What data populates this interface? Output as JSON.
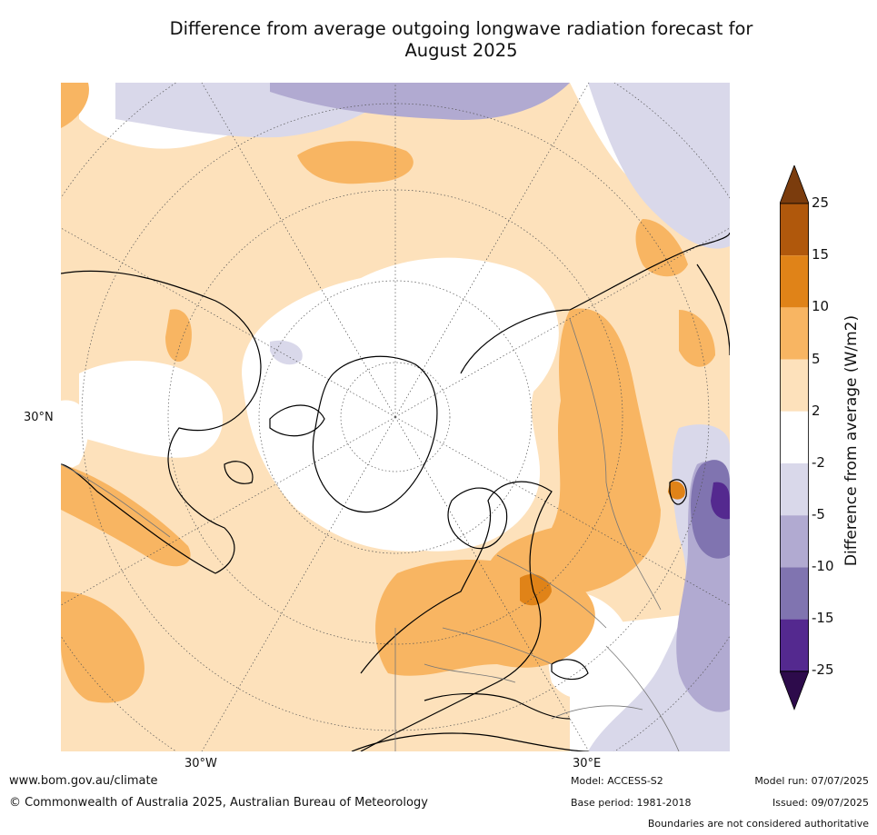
{
  "title": {
    "line1": "Difference from average outgoing longwave radiation forecast for",
    "line2": "August 2025"
  },
  "map": {
    "projection": "north-polar-stereographic",
    "graticule_labels": {
      "lat_30n": "30°N",
      "lon_30w": "30°W",
      "lon_30e": "30°E"
    }
  },
  "colorbar": {
    "title": "Difference from average (W/m2)",
    "tick_labels": [
      "25",
      "15",
      "10",
      "5",
      "2",
      "-2",
      "-5",
      "-10",
      "-15",
      "-25"
    ],
    "bins": [
      {
        "range": "> 25",
        "color": "#7b3c0d"
      },
      {
        "range": "15 to 25",
        "color": "#b0580c"
      },
      {
        "range": "10 to 15",
        "color": "#e08318"
      },
      {
        "range": "5 to 10",
        "color": "#f8b562"
      },
      {
        "range": "2 to 5",
        "color": "#fde1bb"
      },
      {
        "range": "-2 to 2",
        "color": "#ffffff"
      },
      {
        "range": "-5 to -2",
        "color": "#d9d8ea"
      },
      {
        "range": "-10 to -5",
        "color": "#b1aad1"
      },
      {
        "range": "-15 to -10",
        "color": "#8074b0"
      },
      {
        "range": "-25 to -15",
        "color": "#54298f"
      },
      {
        "range": "< -25",
        "color": "#2d0b4b"
      }
    ]
  },
  "footer": {
    "website": "www.bom.gov.au/climate",
    "copyright": "© Commonwealth of Australia 2025, Australian Bureau of Meteorology",
    "model": "Model: ACCESS-S2",
    "base_period": "Base period: 1981-2018",
    "model_run": "Model run: 07/07/2025",
    "issued": "Issued: 09/07/2025",
    "boundaries_note": "Boundaries are not considered authoritative"
  }
}
